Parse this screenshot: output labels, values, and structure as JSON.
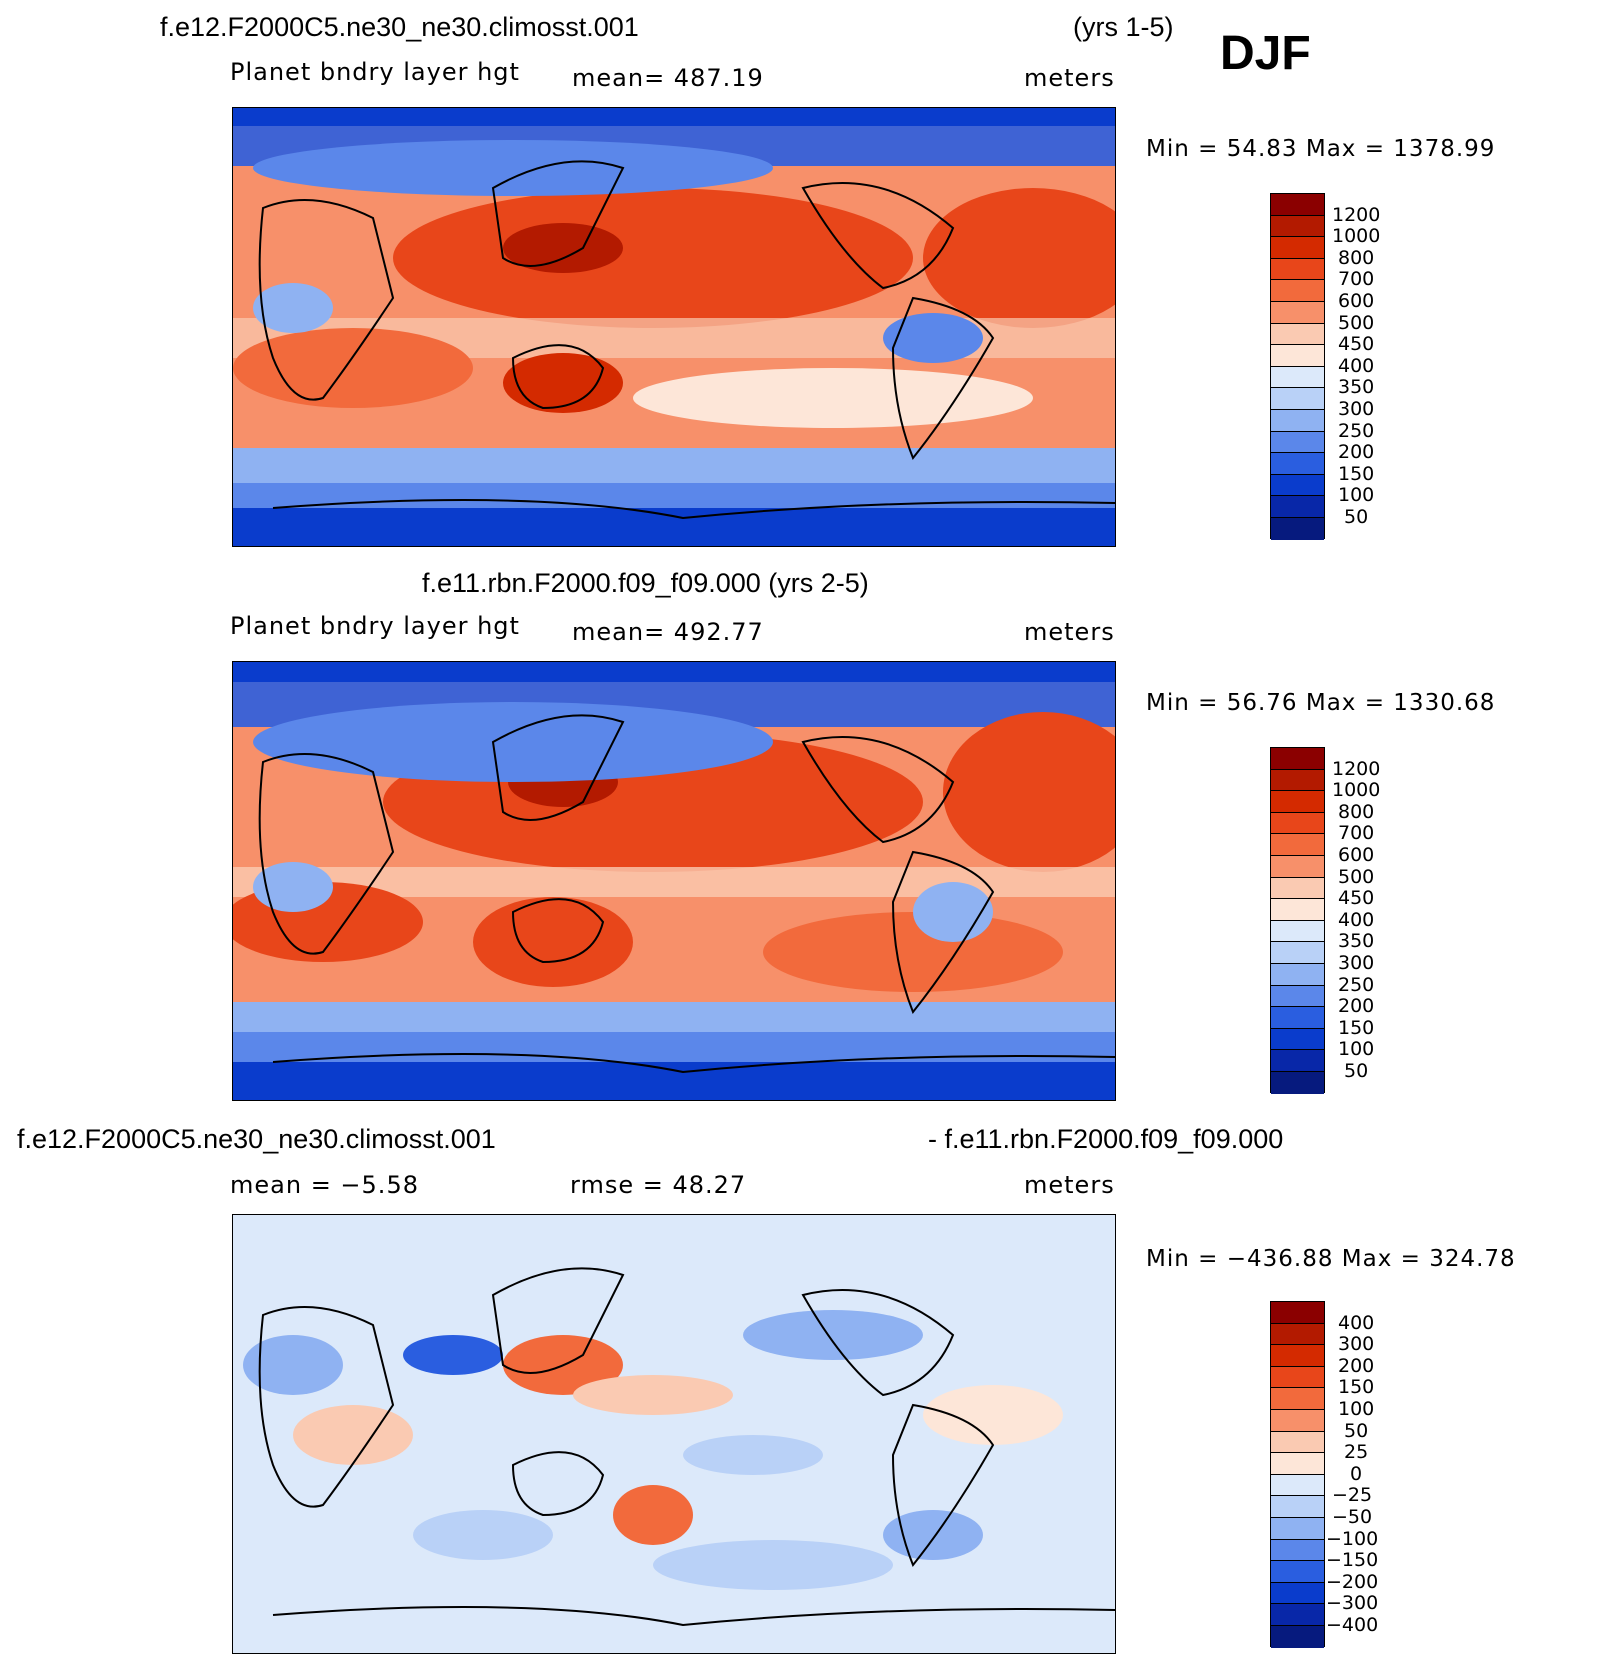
{
  "header": {
    "case1": "f.e12.F2000C5.ne30_ne30.climosst.001",
    "years1": "(yrs 1-5)",
    "season": "DJF"
  },
  "panels": [
    {
      "id": "top",
      "title": "",
      "left_label": "Planet bndry layer hgt",
      "center_label": "mean=  487.19",
      "right_label": "meters",
      "minmax": "Min =   54.83 Max = 1378.99",
      "levels": [
        "1200",
        "1000",
        "800",
        "700",
        "600",
        "500",
        "450",
        "400",
        "350",
        "300",
        "250",
        "200",
        "150",
        "100",
        "50"
      ]
    },
    {
      "id": "middle",
      "title": "f.e11.rbn.F2000.f09_f09.000 (yrs 2-5)",
      "left_label": "Planet bndry layer hgt",
      "center_label": "mean=  492.77",
      "right_label": "meters",
      "minmax": "Min =   56.76 Max = 1330.68",
      "levels": [
        "1200",
        "1000",
        "800",
        "700",
        "600",
        "500",
        "450",
        "400",
        "350",
        "300",
        "250",
        "200",
        "150",
        "100",
        "50"
      ]
    },
    {
      "id": "bottom",
      "title_left": "f.e12.F2000C5.ne30_ne30.climosst.001",
      "title_right": "- f.e11.rbn.F2000.f09_f09.000",
      "left_label": "mean =   −5.58",
      "center_label": "rmse =    48.27",
      "right_label": "meters",
      "minmax": "Min = −436.88 Max = 324.78",
      "levels": [
        "400",
        "300",
        "200",
        "150",
        "100",
        "50",
        "25",
        "0",
        "−25",
        "−50",
        "−100",
        "−150",
        "−200",
        "−300",
        "−400"
      ]
    }
  ],
  "colors": {
    "palette": [
      "#8b0000",
      "#b31a00",
      "#d42a00",
      "#e8461a",
      "#f26a3c",
      "#f7906a",
      "#facab2",
      "#fde6d8",
      "#dce9fa",
      "#b9d1f7",
      "#8fb2f2",
      "#5b87ea",
      "#2a5ee0",
      "#0a3ccc",
      "#0827a8",
      "#061a7e"
    ],
    "ocean_warm": "#f26a3c",
    "ocean_cool": "#2a5ee0",
    "diff_bg": "#dce9fa"
  }
}
